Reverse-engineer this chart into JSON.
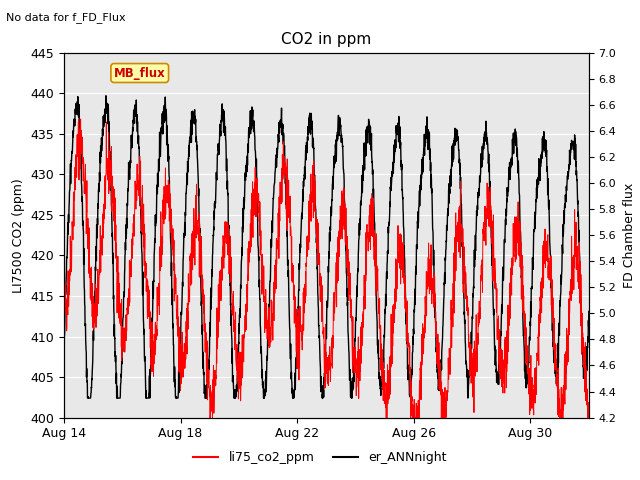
{
  "title": "CO2 in ppm",
  "top_left_text": "No data for f_FD_Flux",
  "ylabel_left": "LI7500 CO2 (ppm)",
  "ylabel_right": "FD Chamber flux",
  "ylim_left": [
    400,
    445
  ],
  "ylim_right": [
    4.2,
    7.0
  ],
  "yticks_left": [
    400,
    405,
    410,
    415,
    420,
    425,
    430,
    435,
    440,
    445
  ],
  "yticks_right": [
    4.2,
    4.4,
    4.6,
    4.8,
    5.0,
    5.2,
    5.4,
    5.6,
    5.8,
    6.0,
    6.2,
    6.4,
    6.6,
    6.8,
    7.0
  ],
  "xticklabels": [
    "Aug 14",
    "Aug 18",
    "Aug 22",
    "Aug 26",
    "Aug 30"
  ],
  "xtick_positions": [
    0,
    4,
    8,
    12,
    16
  ],
  "legend_entries": [
    "li75_co2_ppm",
    "er_ANNnight"
  ],
  "legend_colors": [
    "red",
    "black"
  ],
  "line1_color": "red",
  "line2_color": "black",
  "line1_lw": 0.7,
  "line2_lw": 1.0,
  "mb_flux_label": "MB_flux",
  "mb_flux_color": "#cc0000",
  "mb_flux_bg": "#ffffaa",
  "mb_flux_border": "#cc8800",
  "background_color": "#ffffff",
  "plot_bg_color": "#e8e8e8",
  "grid_color": "#ffffff",
  "n_days": 18,
  "n_points_per_day": 144
}
